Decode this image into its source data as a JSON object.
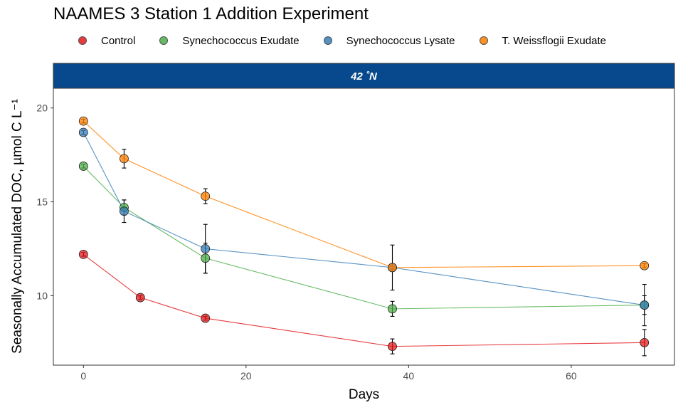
{
  "title": "NAAMES 3 Station 1 Addition Experiment",
  "legend": [
    {
      "name": "Control",
      "color": "#E41A1C"
    },
    {
      "name": "Synechococcus Exudate",
      "color": "#4DAF4A"
    },
    {
      "name": "Synechococcus Lysate",
      "color": "#377EB8"
    },
    {
      "name": "T. Weissflogii Exudate",
      "color": "#FF7F00"
    }
  ],
  "strip_color": "#08488C",
  "chart_data": {
    "type": "line",
    "title": "NAAMES 3 Station 1 Addition Experiment",
    "facet": "42 ˚N",
    "xlabel": "Days",
    "ylabel": "Seasonally Accumulated DOC, µmol C L⁻¹",
    "xlim": [
      -3.7,
      72.7
    ],
    "ylim": [
      6.3,
      21.05
    ],
    "xticks": [
      0,
      20,
      40,
      60
    ],
    "yticks": [
      10,
      15,
      20
    ],
    "grid": false,
    "legend_position": "top",
    "series": [
      {
        "name": "Control",
        "color": "#E41A1C",
        "points": [
          {
            "x": 0,
            "y": 12.2,
            "err": 0.1
          },
          {
            "x": 7,
            "y": 9.9,
            "err": 0.1
          },
          {
            "x": 15,
            "y": 8.8,
            "err": 0.1
          },
          {
            "x": 38,
            "y": 7.3,
            "err": 0.4
          },
          {
            "x": 69,
            "y": 7.5,
            "err": 0.7
          }
        ]
      },
      {
        "name": "Synechococcus Exudate",
        "color": "#4DAF4A",
        "points": [
          {
            "x": 0,
            "y": 16.9,
            "err": 0.1
          },
          {
            "x": 5,
            "y": 14.7,
            "err": 0.4
          },
          {
            "x": 15,
            "y": 12.0,
            "err": 0.8
          },
          {
            "x": 38,
            "y": 9.3,
            "err": 0.4
          },
          {
            "x": 69,
            "y": 9.5,
            "err": 0.5
          }
        ]
      },
      {
        "name": "Synechococcus Lysate",
        "color": "#377EB8",
        "points": [
          {
            "x": 0,
            "y": 18.7,
            "err": 0.1
          },
          {
            "x": 5,
            "y": 14.5,
            "err": 0.6
          },
          {
            "x": 15,
            "y": 12.5,
            "err": 1.3
          },
          {
            "x": 38,
            "y": 11.5,
            "err": 1.2
          },
          {
            "x": 69,
            "y": 9.5,
            "err": 1.1
          }
        ]
      },
      {
        "name": "T. Weissflogii Exudate",
        "color": "#FF7F00",
        "points": [
          {
            "x": 0,
            "y": 19.3,
            "err": 0.1
          },
          {
            "x": 5,
            "y": 17.3,
            "err": 0.5
          },
          {
            "x": 15,
            "y": 15.3,
            "err": 0.4
          },
          {
            "x": 38,
            "y": 11.5,
            "err": 0.1
          },
          {
            "x": 69,
            "y": 11.6,
            "err": 0.1
          }
        ]
      }
    ]
  }
}
